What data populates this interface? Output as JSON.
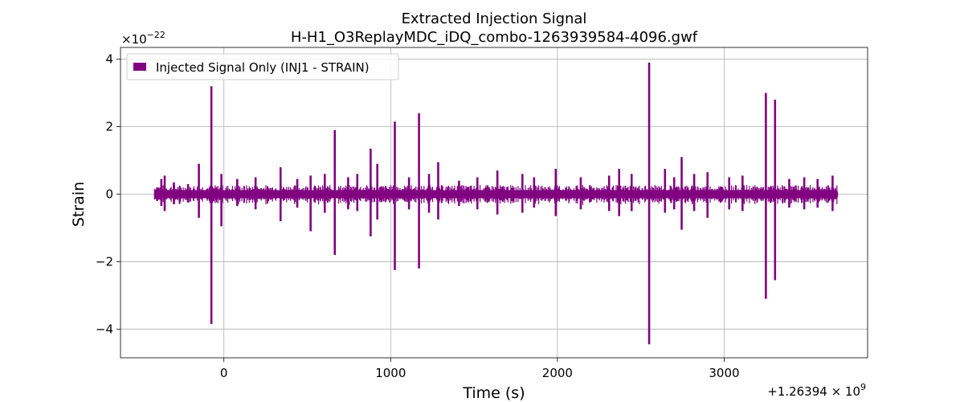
{
  "chart_data": {
    "type": "line",
    "title": "Extracted Injection Signal",
    "subtitle": "H-H1_O3ReplayMDC_iDQ_combo-1263939584-4096.gwf",
    "xlabel": "Time (s)",
    "ylabel": "Strain",
    "x_offset_label": "+1.26394 × 10",
    "x_offset_exponent": "9",
    "y_scale_label": "×10",
    "y_scale_exponent": "−22",
    "xlim": [
      -620,
      3860
    ],
    "ylim": [
      -4.85,
      4.35
    ],
    "x_ticks": [
      0,
      1000,
      2000,
      3000
    ],
    "x_tick_labels": [
      "0",
      "1000",
      "2000",
      "3000"
    ],
    "y_ticks": [
      -4,
      -2,
      0,
      2,
      4
    ],
    "y_tick_labels": [
      "−4",
      "−2",
      "0",
      "2",
      "4"
    ],
    "grid": true,
    "legend_position": "top-left",
    "series": [
      {
        "name": "Injected Signal Only (INJ1 - STRAIN)",
        "color": "#800080",
        "time_range": [
          -416,
          3680
        ],
        "baseline_band": [
          -0.12,
          0.12
        ],
        "spikes": [
          {
            "x": -400,
            "ymax": 0.2,
            "ymin": -0.2
          },
          {
            "x": -375,
            "ymax": 0.45,
            "ymin": -0.35
          },
          {
            "x": -355,
            "ymax": 0.55,
            "ymin": -0.5
          },
          {
            "x": -300,
            "ymax": 0.35,
            "ymin": -0.3
          },
          {
            "x": -215,
            "ymax": 0.3,
            "ymin": -0.25
          },
          {
            "x": -150,
            "ymax": 0.9,
            "ymin": -0.7
          },
          {
            "x": -75,
            "ymax": 3.2,
            "ymin": -3.85
          },
          {
            "x": -15,
            "ymax": 0.6,
            "ymin": -0.95
          },
          {
            "x": 80,
            "ymax": 0.45,
            "ymin": -0.35
          },
          {
            "x": 190,
            "ymax": 0.5,
            "ymin": -0.45
          },
          {
            "x": 340,
            "ymax": 0.8,
            "ymin": -0.8
          },
          {
            "x": 440,
            "ymax": 0.45,
            "ymin": -0.4
          },
          {
            "x": 520,
            "ymax": 0.55,
            "ymin": -1.1
          },
          {
            "x": 605,
            "ymax": 0.6,
            "ymin": -0.55
          },
          {
            "x": 665,
            "ymax": 1.9,
            "ymin": -1.8
          },
          {
            "x": 745,
            "ymax": 0.5,
            "ymin": -0.45
          },
          {
            "x": 800,
            "ymax": 0.6,
            "ymin": -0.5
          },
          {
            "x": 880,
            "ymax": 1.35,
            "ymin": -1.25
          },
          {
            "x": 920,
            "ymax": 0.9,
            "ymin": -0.75
          },
          {
            "x": 1025,
            "ymax": 2.15,
            "ymin": -2.25
          },
          {
            "x": 1110,
            "ymax": 0.5,
            "ymin": -0.45
          },
          {
            "x": 1170,
            "ymax": 2.4,
            "ymin": -2.2
          },
          {
            "x": 1230,
            "ymax": 0.6,
            "ymin": -0.55
          },
          {
            "x": 1285,
            "ymax": 0.95,
            "ymin": -0.75
          },
          {
            "x": 1410,
            "ymax": 0.4,
            "ymin": -0.35
          },
          {
            "x": 1520,
            "ymax": 0.5,
            "ymin": -0.45
          },
          {
            "x": 1640,
            "ymax": 0.7,
            "ymin": -0.6
          },
          {
            "x": 1790,
            "ymax": 0.6,
            "ymin": -0.55
          },
          {
            "x": 1860,
            "ymax": 0.5,
            "ymin": -0.4
          },
          {
            "x": 1990,
            "ymax": 0.75,
            "ymin": -0.65
          },
          {
            "x": 2140,
            "ymax": 0.5,
            "ymin": -0.45
          },
          {
            "x": 2310,
            "ymax": 0.55,
            "ymin": -0.5
          },
          {
            "x": 2370,
            "ymax": 0.75,
            "ymin": -0.65
          },
          {
            "x": 2445,
            "ymax": 0.6,
            "ymin": -0.5
          },
          {
            "x": 2550,
            "ymax": 3.9,
            "ymin": -4.45
          },
          {
            "x": 2645,
            "ymax": 0.75,
            "ymin": -0.55
          },
          {
            "x": 2700,
            "ymax": 0.5,
            "ymin": -0.45
          },
          {
            "x": 2745,
            "ymax": 1.1,
            "ymin": -1.05
          },
          {
            "x": 2820,
            "ymax": 0.6,
            "ymin": -0.5
          },
          {
            "x": 2900,
            "ymax": 0.65,
            "ymin": -0.7
          },
          {
            "x": 3030,
            "ymax": 0.5,
            "ymin": -0.45
          },
          {
            "x": 3110,
            "ymax": 0.55,
            "ymin": -0.5
          },
          {
            "x": 3250,
            "ymax": 3.0,
            "ymin": -3.1
          },
          {
            "x": 3305,
            "ymax": 2.8,
            "ymin": -2.55
          },
          {
            "x": 3390,
            "ymax": 0.45,
            "ymin": -0.4
          },
          {
            "x": 3480,
            "ymax": 0.5,
            "ymin": -0.45
          },
          {
            "x": 3560,
            "ymax": 0.45,
            "ymin": -0.4
          },
          {
            "x": 3650,
            "ymax": 0.55,
            "ymin": -0.5
          }
        ]
      }
    ]
  }
}
